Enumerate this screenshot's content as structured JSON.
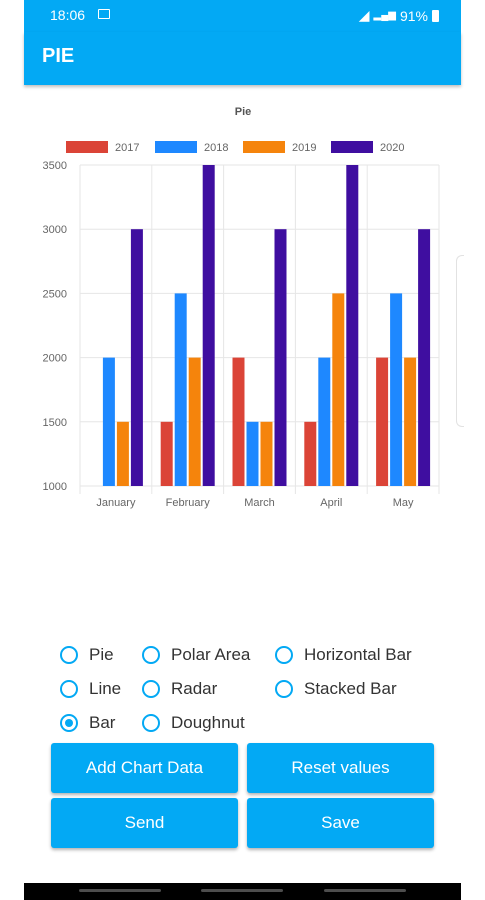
{
  "status": {
    "time": "18:06",
    "battery": "91%"
  },
  "app": {
    "title": "PIE"
  },
  "chart_data": {
    "type": "bar",
    "title": "Pie",
    "categories": [
      "January",
      "February",
      "March",
      "April",
      "May"
    ],
    "series": [
      {
        "name": "2017",
        "color": "#db4437",
        "values": [
          1000,
          1500,
          2000,
          1500,
          2000
        ]
      },
      {
        "name": "2018",
        "color": "#1e88ff",
        "values": [
          2000,
          2500,
          1500,
          2000,
          2500
        ]
      },
      {
        "name": "2019",
        "color": "#f5840c",
        "values": [
          1500,
          2000,
          1500,
          2500,
          2000
        ]
      },
      {
        "name": "2020",
        "color": "#3f0ea0",
        "values": [
          3000,
          3500,
          3000,
          3500,
          3000
        ]
      }
    ],
    "y_ticks": [
      "1000",
      "1500",
      "2000",
      "2500",
      "3000",
      "3500"
    ],
    "ylim": [
      1000,
      3500
    ],
    "grid": true,
    "legend": "top"
  },
  "options": [
    {
      "label": "Pie",
      "checked": false
    },
    {
      "label": "Polar Area",
      "checked": false
    },
    {
      "label": "Horizontal Bar",
      "checked": false
    },
    {
      "label": "Line",
      "checked": false
    },
    {
      "label": "Radar",
      "checked": false
    },
    {
      "label": "Stacked Bar",
      "checked": false
    },
    {
      "label": "Bar",
      "checked": true
    },
    {
      "label": "Doughnut",
      "checked": false
    }
  ],
  "buttons": {
    "add": "Add Chart Data",
    "reset": "Reset values",
    "send": "Send",
    "save": "Save"
  },
  "colors": {
    "accent": "#03a9f4"
  }
}
